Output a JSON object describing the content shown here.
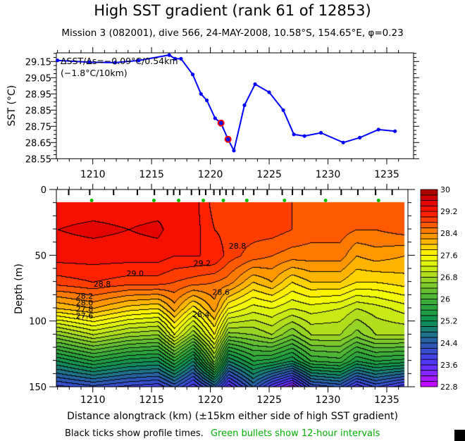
{
  "title": "High SST gradient (rank 61 of 12853)",
  "subtitle": "Mission 3 (082001),  dive 566,  24-MAY-2008,  10.58°S, 154.65°E,  φ=0.23",
  "caption_black": "Black ticks show profile times.",
  "caption_green": "Green bullets show 12-hour intervals",
  "colors": {
    "sst_line": "#0000ff",
    "highlight": "#ff0000",
    "bullet": "#00c000",
    "caption_green": "#00b000"
  },
  "chart_data": [
    {
      "type": "line",
      "ylabel": "SST (°C)",
      "xlim": [
        1206.9,
        1236.3
      ],
      "ylim": [
        28.55,
        29.2
      ],
      "yticks": [
        "29.15",
        "29.05",
        "28.95",
        "28.85",
        "28.75",
        "28.65",
        "28.55"
      ],
      "xticks": [
        "1210",
        "1215",
        "1220",
        "1225",
        "1230",
        "1235"
      ],
      "annotation": [
        "ΔSST/Δs=−0.09°C/0.54km",
        "(−1.8°C/10km)"
      ],
      "series": [
        {
          "x": [
            1207.0,
            1209.7,
            1211.9,
            1213.9,
            1216.5,
            1217.0,
            1217.5,
            1218.5,
            1219.2,
            1219.7,
            1220.4,
            1220.9,
            1221.5,
            1222.0,
            1222.9,
            1223.8,
            1225.0,
            1226.2,
            1227.1,
            1228.0,
            1229.4,
            1231.3,
            1232.7,
            1234.3,
            1235.7
          ],
          "y": [
            29.157,
            29.146,
            29.143,
            29.156,
            29.19,
            29.167,
            29.167,
            29.07,
            28.95,
            28.91,
            28.8,
            28.77,
            28.67,
            28.6,
            28.88,
            29.01,
            28.96,
            28.85,
            28.7,
            28.69,
            28.71,
            28.65,
            28.68,
            28.73,
            28.72
          ]
        }
      ],
      "highlighted_points": [
        11,
        12
      ]
    },
    {
      "type": "heatmap",
      "xlabel": "Distance alongtrack (km) (±15km either side of high SST gradient)",
      "ylabel": "Depth (m)",
      "xlim": [
        1206.9,
        1236.8
      ],
      "ylim": [
        150,
        0
      ],
      "yticks": [
        "0",
        "50",
        "100",
        "150"
      ],
      "xticks": [
        "1210",
        "1215",
        "1220",
        "1225",
        "1230",
        "1235"
      ],
      "colorbar": {
        "min": 22.8,
        "max": 30,
        "step": 0.2,
        "labels": [
          "30",
          "29.2",
          "28.4",
          "27.6",
          "26.8",
          "26",
          "25.2",
          "24.4",
          "23.6",
          "22.8"
        ]
      },
      "depths": [
        10,
        30,
        50,
        70,
        90,
        110,
        130,
        150
      ],
      "profiles": [
        {
          "x": 1207.0,
          "t": [
            29.3,
            29.4,
            29.3,
            28.9,
            28.0,
            26.6,
            25.2,
            23.9
          ]
        },
        {
          "x": 1210.0,
          "t": [
            29.3,
            29.45,
            29.3,
            29.0,
            28.2,
            27.0,
            25.6,
            24.1
          ]
        },
        {
          "x": 1213.0,
          "t": [
            29.3,
            29.4,
            29.3,
            28.9,
            27.9,
            26.7,
            25.3,
            23.9
          ]
        },
        {
          "x": 1215.5,
          "t": [
            29.3,
            29.45,
            29.3,
            28.9,
            27.8,
            26.6,
            25.2,
            23.8
          ]
        },
        {
          "x": 1216.9,
          "t": [
            29.3,
            29.3,
            29.2,
            28.8,
            28.3,
            27.4,
            25.8,
            24.2
          ]
        },
        {
          "x": 1218.5,
          "t": [
            29.3,
            29.3,
            29.2,
            28.7,
            27.7,
            26.6,
            25.0,
            23.6
          ]
        },
        {
          "x": 1220.3,
          "t": [
            28.9,
            29.0,
            29.2,
            28.6,
            28.3,
            27.6,
            26.5,
            24.4
          ]
        },
        {
          "x": 1221.5,
          "t": [
            28.9,
            28.9,
            28.9,
            28.5,
            27.6,
            26.5,
            25.0,
            23.4
          ]
        },
        {
          "x": 1223.6,
          "t": [
            28.9,
            28.9,
            28.7,
            28.0,
            27.3,
            26.6,
            25.6,
            24.4
          ]
        },
        {
          "x": 1225.2,
          "t": [
            28.9,
            28.9,
            28.6,
            28.2,
            27.4,
            26.8,
            25.5,
            23.6
          ]
        },
        {
          "x": 1226.9,
          "t": [
            28.8,
            28.8,
            28.5,
            27.8,
            27.2,
            26.4,
            25.2,
            23.0
          ]
        },
        {
          "x": 1228.5,
          "t": [
            28.7,
            28.7,
            28.5,
            28.0,
            27.3,
            26.8,
            25.8,
            24.0
          ]
        },
        {
          "x": 1231.0,
          "t": [
            28.7,
            28.7,
            28.5,
            28.0,
            27.2,
            26.8,
            25.9,
            24.2
          ]
        },
        {
          "x": 1232.4,
          "t": [
            28.7,
            28.6,
            28.2,
            27.8,
            27.0,
            26.5,
            25.4,
            23.6
          ]
        },
        {
          "x": 1234.0,
          "t": [
            28.7,
            28.6,
            28.3,
            27.8,
            27.1,
            26.8,
            25.6,
            24.0
          ]
        },
        {
          "x": 1236.5,
          "t": [
            28.7,
            28.7,
            28.2,
            27.9,
            27.3,
            26.8,
            25.5,
            23.6
          ]
        }
      ],
      "contour_labels": [
        {
          "text": "29.2",
          "x": 1219.3,
          "d": 58
        },
        {
          "text": "29.0",
          "x": 1213.6,
          "d": 66
        },
        {
          "text": "28.8",
          "x": 1210.8,
          "d": 74
        },
        {
          "text": "28.2",
          "x": 1209.3,
          "d": 83
        },
        {
          "text": "28.0",
          "x": 1209.3,
          "d": 88
        },
        {
          "text": "27.8",
          "x": 1209.3,
          "d": 93
        },
        {
          "text": "27.6",
          "x": 1209.3,
          "d": 98
        },
        {
          "text": "28.4",
          "x": 1219.2,
          "d": 97
        },
        {
          "text": "28.6",
          "x": 1220.9,
          "d": 80
        },
        {
          "text": "28.8",
          "x": 1222.3,
          "d": 45
        }
      ],
      "profile_ticks": [
        1207.95,
        1209.74,
        1211.77,
        1213.79,
        1215.24,
        1216.35,
        1216.88,
        1217.4,
        1218.39,
        1219.07,
        1219.6,
        1220.3,
        1220.81,
        1221.33,
        1221.9,
        1222.78,
        1223.69,
        1224.84,
        1226.11,
        1226.98,
        1227.82,
        1229.4,
        1231.13,
        1232.54,
        1234.05,
        1235.46
      ],
      "green_bullets": [
        1209.9,
        1215.2,
        1217.3,
        1219.4,
        1221.1,
        1223.1,
        1226.3,
        1229.8,
        1234.3
      ]
    }
  ]
}
